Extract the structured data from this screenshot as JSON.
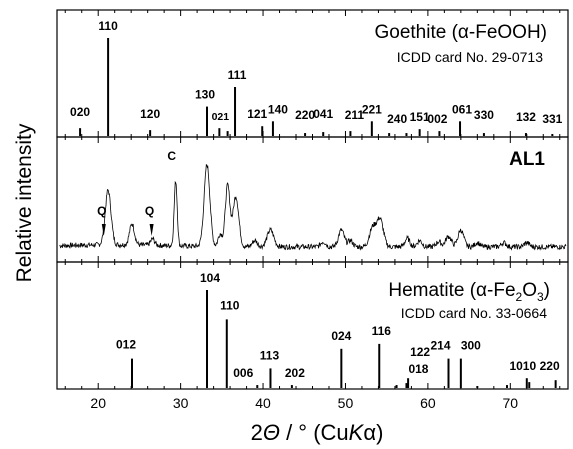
{
  "chart_data": [
    {
      "type": "bar",
      "title": "Goethite (α-FeOOH)",
      "subtitle": "ICDD card No. 29-0713",
      "sticks": [
        {
          "x": 17.8,
          "y": 0.08,
          "label": "020"
        },
        {
          "x": 21.2,
          "y": 1.0,
          "label": "110"
        },
        {
          "x": 26.3,
          "y": 0.06,
          "label": "120"
        },
        {
          "x": 33.2,
          "y": 0.3,
          "label": "130"
        },
        {
          "x": 34.7,
          "y": 0.08,
          "label": "021"
        },
        {
          "x": 35.7,
          "y": 0.05,
          "label": ""
        },
        {
          "x": 36.6,
          "y": 0.5,
          "label": "111"
        },
        {
          "x": 39.9,
          "y": 0.1,
          "label": "121"
        },
        {
          "x": 41.2,
          "y": 0.15,
          "label": "140"
        },
        {
          "x": 45.1,
          "y": 0.03,
          "label": "220"
        },
        {
          "x": 47.3,
          "y": 0.04,
          "label": "041"
        },
        {
          "x": 50.6,
          "y": 0.05,
          "label": "211"
        },
        {
          "x": 53.2,
          "y": 0.15,
          "label": "221"
        },
        {
          "x": 55.3,
          "y": 0.03,
          "label": "240"
        },
        {
          "x": 57.4,
          "y": 0.03,
          "label": ""
        },
        {
          "x": 59.0,
          "y": 0.07,
          "label": "151"
        },
        {
          "x": 61.4,
          "y": 0.05,
          "label": "002"
        },
        {
          "x": 63.9,
          "y": 0.15,
          "label": "061"
        },
        {
          "x": 66.8,
          "y": 0.03,
          "label": "330"
        },
        {
          "x": 71.9,
          "y": 0.03,
          "label": "132"
        },
        {
          "x": 75.1,
          "y": 0.02,
          "label": "331"
        }
      ]
    },
    {
      "type": "line",
      "series": [
        {
          "name": "AL1"
        }
      ],
      "annotations": [
        {
          "label": "C",
          "x": 29.4
        },
        {
          "label": "Q",
          "x": 20.8
        },
        {
          "label": "Q",
          "x": 26.6
        }
      ],
      "peaks": [
        {
          "x": 21.2,
          "h": 0.52,
          "w": 0.35
        },
        {
          "x": 24.1,
          "h": 0.2,
          "w": 0.3
        },
        {
          "x": 26.6,
          "h": 0.06,
          "w": 0.25
        },
        {
          "x": 29.4,
          "h": 0.62,
          "w": 0.18
        },
        {
          "x": 33.2,
          "h": 0.78,
          "w": 0.35
        },
        {
          "x": 34.8,
          "h": 0.12,
          "w": 0.25
        },
        {
          "x": 35.7,
          "h": 0.58,
          "w": 0.28
        },
        {
          "x": 36.7,
          "h": 0.48,
          "w": 0.35
        },
        {
          "x": 39.0,
          "h": 0.06,
          "w": 0.3
        },
        {
          "x": 40.9,
          "h": 0.16,
          "w": 0.4
        },
        {
          "x": 47.3,
          "h": 0.05,
          "w": 0.3
        },
        {
          "x": 49.5,
          "h": 0.16,
          "w": 0.35
        },
        {
          "x": 50.6,
          "h": 0.06,
          "w": 0.3
        },
        {
          "x": 53.3,
          "h": 0.18,
          "w": 0.4
        },
        {
          "x": 54.2,
          "h": 0.26,
          "w": 0.4
        },
        {
          "x": 57.5,
          "h": 0.08,
          "w": 0.3
        },
        {
          "x": 59.0,
          "h": 0.06,
          "w": 0.3
        },
        {
          "x": 61.3,
          "h": 0.05,
          "w": 0.3
        },
        {
          "x": 62.5,
          "h": 0.1,
          "w": 0.35
        },
        {
          "x": 64.0,
          "h": 0.16,
          "w": 0.35
        },
        {
          "x": 66.0,
          "h": 0.04,
          "w": 0.3
        },
        {
          "x": 69.2,
          "h": 0.04,
          "w": 0.3
        },
        {
          "x": 72.0,
          "h": 0.04,
          "w": 0.3
        }
      ]
    },
    {
      "type": "bar",
      "title_parts": [
        "Hematite (α-Fe",
        "2",
        "O",
        "3",
        ")"
      ],
      "subtitle": "ICDD card No. 33-0664",
      "sticks": [
        {
          "x": 24.1,
          "y": 0.3,
          "label": "012"
        },
        {
          "x": 33.2,
          "y": 1.0,
          "label": "104"
        },
        {
          "x": 35.6,
          "y": 0.7,
          "label": "110"
        },
        {
          "x": 39.3,
          "y": 0.03,
          "label": "006"
        },
        {
          "x": 40.9,
          "y": 0.2,
          "label": "113"
        },
        {
          "x": 43.5,
          "y": 0.03,
          "label": "202"
        },
        {
          "x": 49.5,
          "y": 0.4,
          "label": "024"
        },
        {
          "x": 54.1,
          "y": 0.45,
          "label": "116"
        },
        {
          "x": 56.2,
          "y": 0.03,
          "label": ""
        },
        {
          "x": 57.4,
          "y": 0.05,
          "label": "018"
        },
        {
          "x": 57.6,
          "y": 0.1,
          "label": "122"
        },
        {
          "x": 62.5,
          "y": 0.3,
          "label": "214"
        },
        {
          "x": 64.0,
          "y": 0.3,
          "label": "300"
        },
        {
          "x": 66.0,
          "y": 0.02,
          "label": ""
        },
        {
          "x": 69.6,
          "y": 0.03,
          "label": ""
        },
        {
          "x": 72.0,
          "y": 0.1,
          "label": "1010"
        },
        {
          "x": 72.3,
          "y": 0.06,
          "label": ""
        },
        {
          "x": 75.5,
          "y": 0.08,
          "label": "220"
        }
      ]
    }
  ],
  "axes": {
    "xlim": [
      15,
      77
    ],
    "xticks": [
      20,
      30,
      40,
      50,
      60,
      70
    ],
    "xlabel": {
      "pre": "2",
      "theta": "Θ",
      "mid": " / ° (Cu",
      "k": "K",
      "alpha": "α",
      "post": ")"
    },
    "ylabel": "Relative intensity"
  }
}
